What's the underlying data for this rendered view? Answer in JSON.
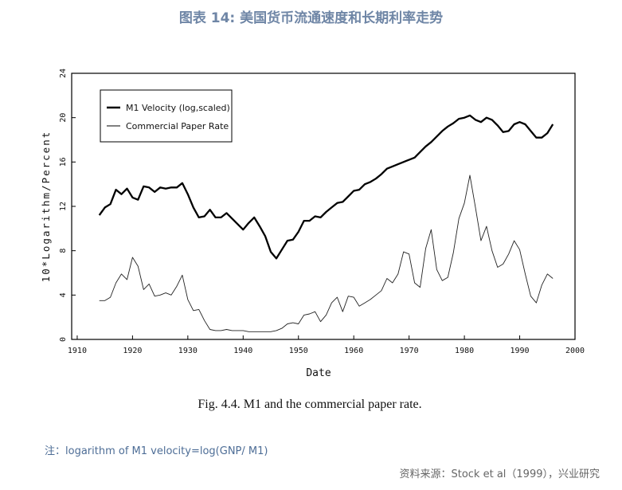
{
  "header": {
    "title": "图表 14: 美国货币流通速度和长期利率走势"
  },
  "footer": {
    "note": "注：logarithm of M1 velocity=log(GNP/ M1)",
    "source": "资料来源：Stock et al（1999），兴业研究"
  },
  "chart_data": {
    "type": "line",
    "caption": "Fig. 4.4. M1 and the commercial paper rate.",
    "xlabel": "Date",
    "ylabel": "10*Logarithm/Percent",
    "xlim": [
      1909,
      2000
    ],
    "ylim": [
      0,
      24
    ],
    "xticks": [
      1910,
      1920,
      1930,
      1940,
      1950,
      1960,
      1970,
      1980,
      1990,
      2000
    ],
    "yticks": [
      0,
      4,
      8,
      12,
      16,
      20,
      24
    ],
    "grid": false,
    "legend_position": "top-left",
    "series": [
      {
        "name": "M1 Velocity (log,scaled)",
        "style": "thick",
        "x": [
          1914,
          1915,
          1916,
          1917,
          1918,
          1919,
          1920,
          1921,
          1922,
          1923,
          1924,
          1925,
          1926,
          1927,
          1928,
          1929,
          1930,
          1931,
          1932,
          1933,
          1934,
          1935,
          1936,
          1937,
          1938,
          1939,
          1940,
          1941,
          1942,
          1943,
          1944,
          1945,
          1946,
          1947,
          1948,
          1949,
          1950,
          1951,
          1952,
          1953,
          1954,
          1955,
          1956,
          1957,
          1958,
          1959,
          1960,
          1961,
          1962,
          1963,
          1964,
          1965,
          1966,
          1967,
          1968,
          1969,
          1970,
          1971,
          1972,
          1973,
          1974,
          1975,
          1976,
          1977,
          1978,
          1979,
          1980,
          1981,
          1982,
          1983,
          1984,
          1985,
          1986,
          1987,
          1988,
          1989,
          1990,
          1991,
          1992,
          1993,
          1994,
          1995,
          1996
        ],
        "values": [
          11.2,
          11.9,
          12.2,
          13.5,
          13.1,
          13.6,
          12.8,
          12.6,
          13.8,
          13.7,
          13.3,
          13.7,
          13.6,
          13.7,
          13.7,
          14.1,
          13.1,
          11.9,
          11.0,
          11.1,
          11.7,
          11.0,
          11.0,
          11.4,
          10.9,
          10.4,
          9.9,
          10.5,
          11.0,
          10.2,
          9.3,
          7.9,
          7.3,
          8.1,
          8.9,
          9.0,
          9.7,
          10.7,
          10.7,
          11.1,
          11.0,
          11.5,
          11.9,
          12.3,
          12.4,
          12.9,
          13.4,
          13.5,
          14.0,
          14.2,
          14.5,
          14.9,
          15.4,
          15.6,
          15.8,
          16.0,
          16.2,
          16.4,
          16.9,
          17.4,
          17.8,
          18.3,
          18.8,
          19.2,
          19.5,
          19.9,
          20.0,
          20.2,
          19.8,
          19.6,
          20.0,
          19.8,
          19.3,
          18.7,
          18.8,
          19.4,
          19.6,
          19.4,
          18.8,
          18.2,
          18.2,
          18.6,
          19.4
        ]
      },
      {
        "name": "Commercial Paper Rate",
        "style": "thin",
        "x": [
          1914,
          1915,
          1916,
          1917,
          1918,
          1919,
          1920,
          1921,
          1922,
          1923,
          1924,
          1925,
          1926,
          1927,
          1928,
          1929,
          1930,
          1931,
          1932,
          1933,
          1934,
          1935,
          1936,
          1937,
          1938,
          1939,
          1940,
          1941,
          1942,
          1943,
          1944,
          1945,
          1946,
          1947,
          1948,
          1949,
          1950,
          1951,
          1952,
          1953,
          1954,
          1955,
          1956,
          1957,
          1958,
          1959,
          1960,
          1961,
          1962,
          1963,
          1964,
          1965,
          1966,
          1967,
          1968,
          1969,
          1970,
          1971,
          1972,
          1973,
          1974,
          1975,
          1976,
          1977,
          1978,
          1979,
          1980,
          1981,
          1982,
          1983,
          1984,
          1985,
          1986,
          1987,
          1988,
          1989,
          1990,
          1991,
          1992,
          1993,
          1994,
          1995,
          1996
        ],
        "values": [
          3.5,
          3.5,
          3.8,
          5.1,
          5.9,
          5.4,
          7.4,
          6.6,
          4.5,
          5.0,
          3.9,
          4.0,
          4.2,
          4.0,
          4.8,
          5.8,
          3.6,
          2.6,
          2.7,
          1.7,
          0.9,
          0.8,
          0.8,
          0.9,
          0.8,
          0.8,
          0.8,
          0.7,
          0.7,
          0.7,
          0.7,
          0.7,
          0.8,
          1.0,
          1.4,
          1.5,
          1.4,
          2.2,
          2.3,
          2.5,
          1.6,
          2.2,
          3.3,
          3.8,
          2.5,
          3.9,
          3.8,
          3.0,
          3.3,
          3.6,
          4.0,
          4.4,
          5.5,
          5.1,
          5.9,
          7.9,
          7.7,
          5.1,
          4.7,
          8.2,
          9.9,
          6.3,
          5.3,
          5.6,
          7.8,
          10.9,
          12.3,
          14.8,
          11.9,
          8.9,
          10.2,
          8.0,
          6.5,
          6.8,
          7.7,
          8.9,
          8.1,
          5.9,
          3.9,
          3.3,
          4.9,
          5.9,
          5.5
        ]
      }
    ]
  }
}
